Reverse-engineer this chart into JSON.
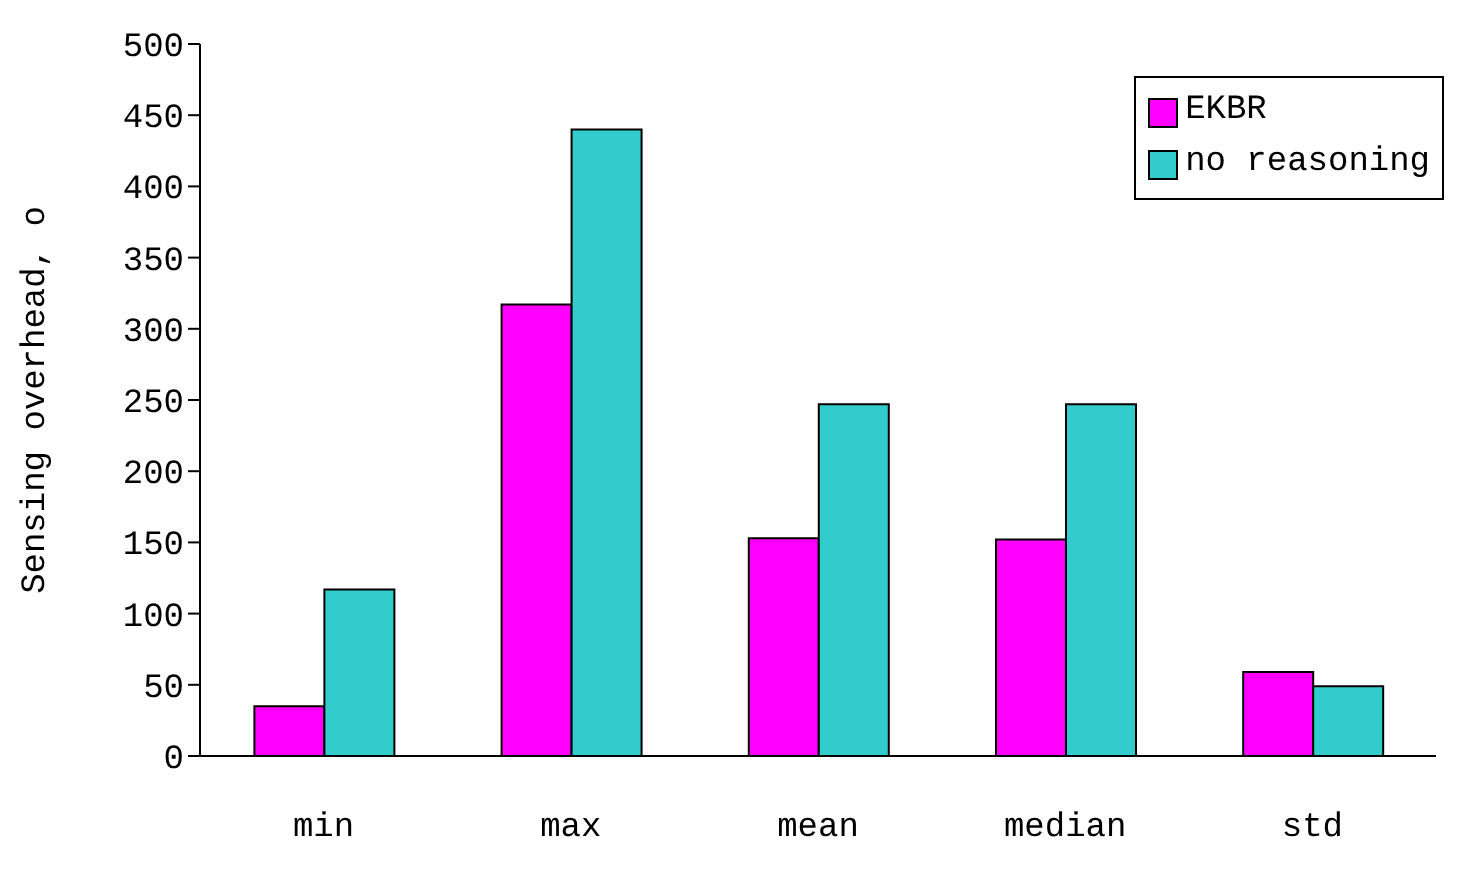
{
  "chart_data": {
    "type": "bar",
    "ylabel": "Sensing overhead, o",
    "categories": [
      "min",
      "max",
      "mean",
      "median",
      "std"
    ],
    "series": [
      {
        "name": "EKBR",
        "color": "#ff00ff",
        "values": [
          35,
          317,
          153,
          152,
          59
        ]
      },
      {
        "name": "no reasoning",
        "color": "#33cccc",
        "values": [
          117,
          440,
          247,
          247,
          49
        ]
      }
    ],
    "ylim": [
      0,
      500
    ],
    "yticks": [
      0,
      50,
      100,
      150,
      200,
      250,
      300,
      350,
      400,
      450,
      500
    ],
    "grid": false,
    "legend": "top right"
  }
}
